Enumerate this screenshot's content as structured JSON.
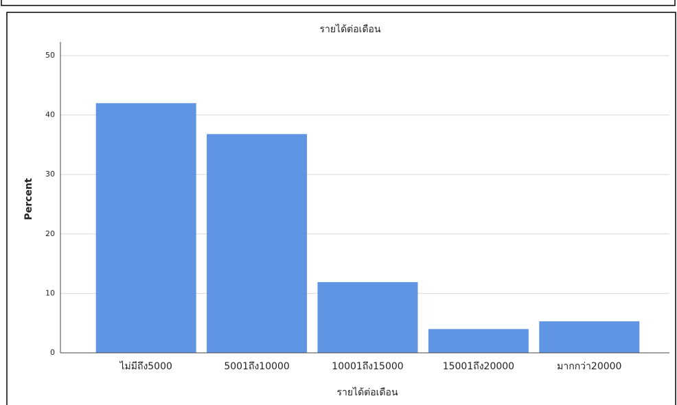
{
  "chart_data": {
    "type": "bar",
    "title": "รายได้ต่อเดือน",
    "x_label": "รายได้ต่อเดือน",
    "y_label": "Percent",
    "categories": [
      "ไม่มีถึง5000",
      "5001ถึง10000",
      "10001ถึง15000",
      "15001ถึง20000",
      "มากกว่า20000"
    ],
    "values": [
      42,
      36.8,
      11.9,
      4,
      5.3
    ],
    "color": "#4a86e0",
    "ylim": [
      0,
      50
    ],
    "yticks": [
      0,
      10,
      20,
      30,
      40,
      50
    ],
    "grid": true
  }
}
